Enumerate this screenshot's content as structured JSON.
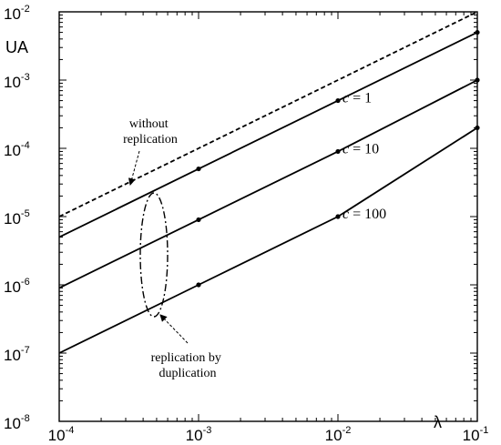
{
  "chart_data": {
    "type": "line",
    "title": "",
    "xlabel": "λ",
    "ylabel": "UA",
    "x_scale": "log",
    "y_scale": "log",
    "xlim": [
      0.0001,
      0.1
    ],
    "ylim": [
      1e-08,
      0.01
    ],
    "x_ticks": [
      {
        "base": "10",
        "exp": "-4"
      },
      {
        "base": "10",
        "exp": "-3"
      },
      {
        "base": "10",
        "exp": "-2"
      },
      {
        "base": "10",
        "exp": "-1"
      }
    ],
    "y_ticks": [
      {
        "base": "10",
        "exp": "-8"
      },
      {
        "base": "10",
        "exp": "-7"
      },
      {
        "base": "10",
        "exp": "-6"
      },
      {
        "base": "10",
        "exp": "-5"
      },
      {
        "base": "10",
        "exp": "-4"
      },
      {
        "base": "10",
        "exp": "-3"
      },
      {
        "base": "10",
        "exp": "-2"
      }
    ],
    "grid": false,
    "series": [
      {
        "label": "",
        "style": "dashed",
        "markers": false,
        "x": [
          0.0001,
          0.001,
          0.01,
          0.1
        ],
        "y": [
          1e-05,
          0.0001,
          0.001,
          0.01
        ]
      },
      {
        "label": "c = 1",
        "style": "solid",
        "markers": true,
        "x": [
          0.0001,
          0.001,
          0.01,
          0.1
        ],
        "y": [
          5e-06,
          5e-05,
          0.0005,
          0.005
        ]
      },
      {
        "label": "c = 10",
        "style": "solid",
        "markers": true,
        "x": [
          0.0001,
          0.001,
          0.01,
          0.1
        ],
        "y": [
          9e-07,
          9e-06,
          9e-05,
          0.001
        ]
      },
      {
        "label": "c = 100",
        "style": "solid",
        "markers": true,
        "x": [
          0.0001,
          0.001,
          0.01,
          0.1
        ],
        "y": [
          1e-07,
          1e-06,
          1e-05,
          0.0002
        ]
      }
    ],
    "annotations": [
      {
        "text_lines": [
          "without",
          "replication"
        ]
      },
      {
        "text_lines": [
          "replication by",
          "duplication"
        ]
      }
    ]
  }
}
